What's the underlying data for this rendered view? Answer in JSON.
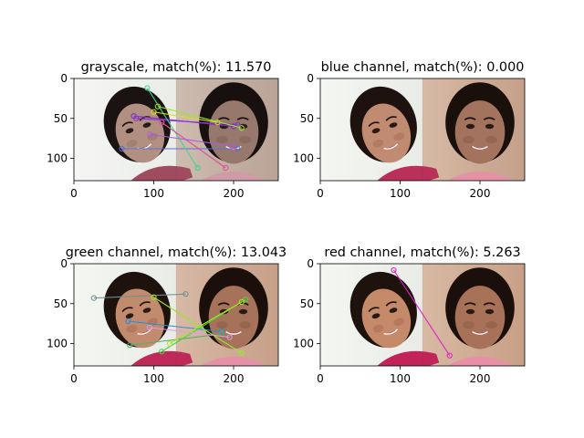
{
  "figure": {
    "background": "#ffffff"
  },
  "chart_data": [
    {
      "type": "image-matches",
      "title": "grayscale, match(%): 11.570",
      "xlim": [
        0,
        256
      ],
      "ylim": [
        128,
        0
      ],
      "xticks": [
        0,
        100,
        200
      ],
      "yticks": [
        0,
        50,
        100
      ],
      "divider_x": 128,
      "tint": "gray",
      "matches": [
        {
          "x1": 75,
          "y1": 47,
          "x2": 200,
          "y2": 60,
          "color": "#7b2fbf"
        },
        {
          "x1": 78,
          "y1": 50,
          "x2": 205,
          "y2": 58,
          "color": "#8a2be2"
        },
        {
          "x1": 60,
          "y1": 88,
          "x2": 205,
          "y2": 88,
          "color": "#5b6fd6"
        },
        {
          "x1": 92,
          "y1": 12,
          "x2": 155,
          "y2": 112,
          "color": "#3fd68a"
        },
        {
          "x1": 100,
          "y1": 42,
          "x2": 180,
          "y2": 55,
          "color": "#d4e01c"
        },
        {
          "x1": 105,
          "y1": 35,
          "x2": 210,
          "y2": 62,
          "color": "#9ae62b"
        },
        {
          "x1": 110,
          "y1": 55,
          "x2": 190,
          "y2": 112,
          "color": "#e0509b"
        },
        {
          "x1": 95,
          "y1": 70,
          "x2": 200,
          "y2": 85,
          "color": "#b356e0"
        }
      ]
    },
    {
      "type": "image-matches",
      "title": "blue channel, match(%): 0.000",
      "xlim": [
        0,
        256
      ],
      "ylim": [
        128,
        0
      ],
      "xticks": [
        0,
        100,
        200
      ],
      "yticks": [
        0,
        50,
        100
      ],
      "divider_x": 128,
      "tint": "blue",
      "matches": []
    },
    {
      "type": "image-matches",
      "title": "green channel, match(%): 13.043",
      "xlim": [
        0,
        256
      ],
      "ylim": [
        128,
        0
      ],
      "xticks": [
        0,
        100,
        200
      ],
      "yticks": [
        0,
        50,
        100
      ],
      "divider_x": 128,
      "tint": "green",
      "matches": [
        {
          "x1": 25,
          "y1": 43,
          "x2": 140,
          "y2": 38,
          "color": "#6f8f8f"
        },
        {
          "x1": 68,
          "y1": 72,
          "x2": 185,
          "y2": 85,
          "color": "#2b8fd6"
        },
        {
          "x1": 70,
          "y1": 102,
          "x2": 185,
          "y2": 88,
          "color": "#4fae6a"
        },
        {
          "x1": 100,
          "y1": 42,
          "x2": 210,
          "y2": 112,
          "color": "#9ae62b"
        },
        {
          "x1": 110,
          "y1": 110,
          "x2": 215,
          "y2": 45,
          "color": "#3fd64a"
        },
        {
          "x1": 120,
          "y1": 100,
          "x2": 210,
          "y2": 48,
          "color": "#b4e01c"
        },
        {
          "x1": 95,
          "y1": 80,
          "x2": 195,
          "y2": 92,
          "color": "#d6a1e0"
        }
      ]
    },
    {
      "type": "image-matches",
      "title": "red channel, match(%): 5.263",
      "xlim": [
        0,
        256
      ],
      "ylim": [
        128,
        0
      ],
      "xticks": [
        0,
        100,
        200
      ],
      "yticks": [
        0,
        50,
        100
      ],
      "divider_x": 128,
      "tint": "red",
      "matches": [
        {
          "x1": 92,
          "y1": 8,
          "x2": 162,
          "y2": 115,
          "color": "#e020c8"
        }
      ]
    }
  ]
}
